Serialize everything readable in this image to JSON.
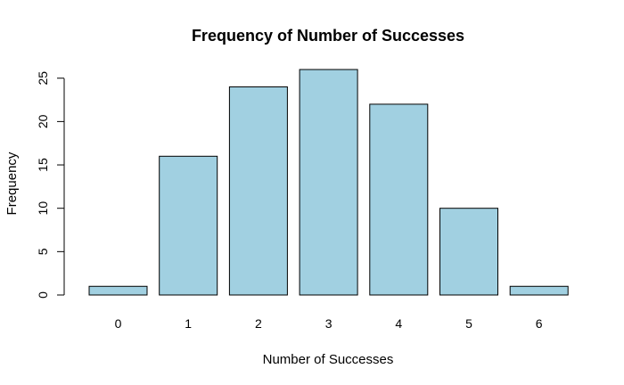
{
  "chart_data": {
    "type": "bar",
    "title": "Frequency of Number of Successes",
    "xlabel": "Number of Successes",
    "ylabel": "Frequency",
    "categories": [
      "0",
      "1",
      "2",
      "3",
      "4",
      "5",
      "6"
    ],
    "values": [
      1,
      16,
      24,
      26,
      22,
      10,
      1
    ],
    "ylim": [
      0,
      26
    ],
    "yticks": [
      "0",
      "5",
      "10",
      "15",
      "20",
      "25"
    ],
    "grid": false,
    "bar_color": "#a1d0e1",
    "bar_border_color": "#000000"
  }
}
